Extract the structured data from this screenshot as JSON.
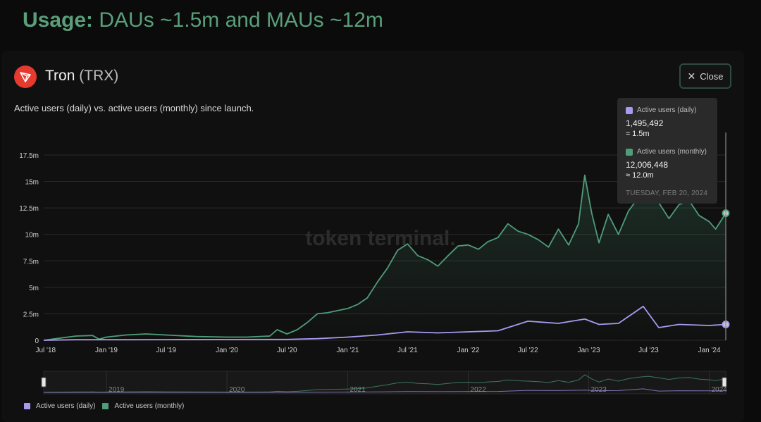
{
  "headline": {
    "strong": "Usage:",
    "rest": " DAUs ~1.5m and MAUs ~12m"
  },
  "token": {
    "name": "Tron",
    "ticker": "(TRX)"
  },
  "close_label": "Close",
  "subtitle": "Active users (daily) vs. active users (monthly) since launch.",
  "watermark": "token terminal.",
  "tooltip": {
    "daily_label": "Active users (daily)",
    "daily_value": "1,495,492",
    "daily_approx": "≈ 1.5m",
    "monthly_label": "Active users (monthly)",
    "monthly_value": "12,006,448",
    "monthly_approx": "≈ 12.0m",
    "date": "TUESDAY, FEB 20, 2024"
  },
  "legend": [
    {
      "label": "Active users (daily)",
      "color": "#a99af0"
    },
    {
      "label": "Active users (monthly)",
      "color": "#4e9c7a"
    }
  ],
  "icons": {
    "logo": "tron-logo-icon",
    "close": "close-icon"
  },
  "colors": {
    "daily": "#a99af0",
    "monthly": "#4e9c7a",
    "headline": "#5a9e7a",
    "logo": "#e63a2f"
  },
  "chart_data": {
    "type": "line",
    "y_ticks": [
      "0",
      "2.5m",
      "5m",
      "7.5m",
      "10m",
      "12.5m",
      "15m",
      "17.5m"
    ],
    "ylim": [
      0,
      17.5
    ],
    "y_unit": "m",
    "x_ticks": [
      "Jul '18",
      "Jan '19",
      "Jul '19",
      "Jan '20",
      "Jul '20",
      "Jan '21",
      "Jul '21",
      "Jan '22",
      "Jul '22",
      "Jan '23",
      "Jul '23",
      "Jan '24"
    ],
    "x_tick_dates": [
      "2018-07-01",
      "2019-01-01",
      "2019-07-01",
      "2020-01-01",
      "2020-07-01",
      "2021-01-01",
      "2021-07-01",
      "2022-01-01",
      "2022-07-01",
      "2023-01-01",
      "2023-07-01",
      "2024-01-01"
    ],
    "x_start": "2018-06-25",
    "x_end": "2024-02-20",
    "grid": true,
    "navigator_years": [
      "2019",
      "2020",
      "2021",
      "2022",
      "2023",
      "2024"
    ],
    "series": [
      {
        "name": "Active users (monthly)",
        "color": "#4e9c7a",
        "points": [
          [
            "2018-06-25",
            0.0
          ],
          [
            "2018-08-01",
            0.15
          ],
          [
            "2018-10-01",
            0.4
          ],
          [
            "2018-11-20",
            0.45
          ],
          [
            "2018-12-10",
            0.1
          ],
          [
            "2019-01-01",
            0.3
          ],
          [
            "2019-03-01",
            0.5
          ],
          [
            "2019-05-01",
            0.6
          ],
          [
            "2019-07-01",
            0.5
          ],
          [
            "2019-10-01",
            0.35
          ],
          [
            "2020-01-01",
            0.3
          ],
          [
            "2020-03-01",
            0.3
          ],
          [
            "2020-05-10",
            0.4
          ],
          [
            "2020-06-01",
            1.0
          ],
          [
            "2020-07-01",
            0.6
          ],
          [
            "2020-08-01",
            1.0
          ],
          [
            "2020-09-01",
            1.7
          ],
          [
            "2020-10-01",
            2.5
          ],
          [
            "2020-11-01",
            2.6
          ],
          [
            "2020-12-01",
            2.8
          ],
          [
            "2021-01-01",
            3.0
          ],
          [
            "2021-02-01",
            3.4
          ],
          [
            "2021-03-01",
            4.0
          ],
          [
            "2021-04-01",
            5.5
          ],
          [
            "2021-05-01",
            6.8
          ],
          [
            "2021-06-01",
            8.5
          ],
          [
            "2021-07-01",
            9.1
          ],
          [
            "2021-08-01",
            8.0
          ],
          [
            "2021-09-01",
            7.6
          ],
          [
            "2021-10-01",
            7.0
          ],
          [
            "2021-11-01",
            8.0
          ],
          [
            "2021-12-01",
            8.9
          ],
          [
            "2022-01-01",
            9.0
          ],
          [
            "2022-02-01",
            8.6
          ],
          [
            "2022-03-01",
            9.3
          ],
          [
            "2022-04-01",
            9.7
          ],
          [
            "2022-05-01",
            11.0
          ],
          [
            "2022-06-01",
            10.3
          ],
          [
            "2022-07-01",
            10.0
          ],
          [
            "2022-08-01",
            9.5
          ],
          [
            "2022-09-01",
            8.8
          ],
          [
            "2022-10-01",
            10.5
          ],
          [
            "2022-11-01",
            9.0
          ],
          [
            "2022-12-01",
            11.0
          ],
          [
            "2022-12-20",
            15.6
          ],
          [
            "2023-01-10",
            12.0
          ],
          [
            "2023-02-01",
            9.2
          ],
          [
            "2023-03-01",
            11.9
          ],
          [
            "2023-04-01",
            10.0
          ],
          [
            "2023-05-01",
            12.2
          ],
          [
            "2023-06-01",
            13.5
          ],
          [
            "2023-07-01",
            14.3
          ],
          [
            "2023-08-01",
            13.0
          ],
          [
            "2023-09-01",
            11.5
          ],
          [
            "2023-10-01",
            12.8
          ],
          [
            "2023-11-01",
            13.2
          ],
          [
            "2023-12-01",
            11.8
          ],
          [
            "2024-01-01",
            11.2
          ],
          [
            "2024-01-20",
            10.5
          ],
          [
            "2024-02-20",
            12.0
          ]
        ]
      },
      {
        "name": "Active users (daily)",
        "color": "#a99af0",
        "points": [
          [
            "2018-06-25",
            0.0
          ],
          [
            "2018-10-01",
            0.05
          ],
          [
            "2019-03-01",
            0.05
          ],
          [
            "2019-07-01",
            0.06
          ],
          [
            "2020-01-01",
            0.07
          ],
          [
            "2020-07-01",
            0.08
          ],
          [
            "2020-10-01",
            0.15
          ],
          [
            "2021-01-01",
            0.3
          ],
          [
            "2021-04-01",
            0.5
          ],
          [
            "2021-07-01",
            0.8
          ],
          [
            "2021-10-01",
            0.7
          ],
          [
            "2022-01-01",
            0.8
          ],
          [
            "2022-04-01",
            0.9
          ],
          [
            "2022-07-01",
            1.8
          ],
          [
            "2022-10-01",
            1.6
          ],
          [
            "2022-12-20",
            2.0
          ],
          [
            "2023-02-01",
            1.5
          ],
          [
            "2023-04-01",
            1.6
          ],
          [
            "2023-06-15",
            3.2
          ],
          [
            "2023-08-01",
            1.2
          ],
          [
            "2023-10-01",
            1.5
          ],
          [
            "2024-01-01",
            1.4
          ],
          [
            "2024-02-20",
            1.5
          ]
        ]
      }
    ],
    "annotations": [
      "1,495,492",
      "12,006,448"
    ]
  }
}
